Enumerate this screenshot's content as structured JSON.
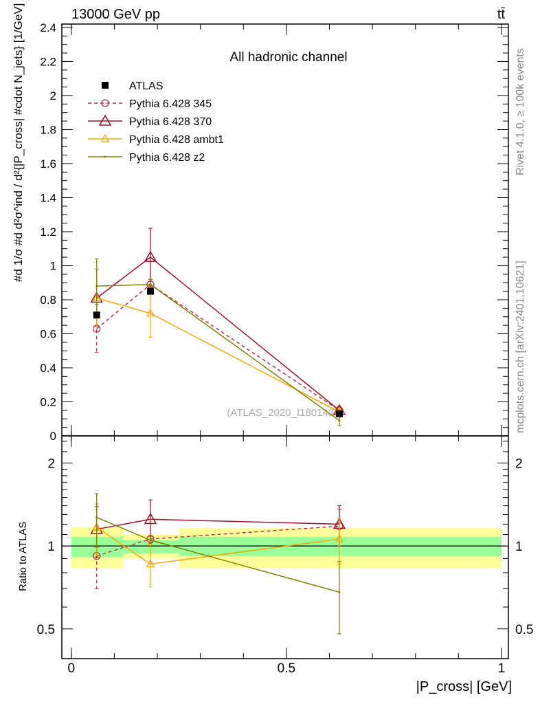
{
  "header": {
    "left": "13000 GeV pp",
    "right": "tt̄"
  },
  "side": {
    "rivet": "Rivet 4.1.0, ≥ 100k events",
    "mcplots": "mcplots.cern.ch [arXiv:2401.10621]"
  },
  "chart_data": [
    {
      "type": "line",
      "title": "All hadronic channel",
      "watermark": "(ATLAS_2020_I1801434)",
      "ylabel": "#d 1/σ #d d²σ^ind / d²{|P_cross| #cdot N_jets} [1/GeV]",
      "xlabel": "|P_cross| [GeV]",
      "xlim": [
        -0.022,
        1.016
      ],
      "ylim": [
        0,
        2.42
      ],
      "yticks": [
        "0",
        "0.2",
        "0.4",
        "0.6",
        "0.8",
        "1",
        "1.2",
        "1.4",
        "1.6",
        "1.8",
        "2",
        "2.2",
        "2.4"
      ],
      "x": [
        0.059,
        0.184,
        0.623
      ],
      "legend_position": "top-left",
      "series": [
        {
          "name": "ATLAS",
          "color": "#000000",
          "marker": "square",
          "values": [
            0.71,
            0.85,
            0.13
          ],
          "err": [
            0,
            0,
            0
          ]
        },
        {
          "name": "Pythia 6.428 345",
          "color": "#b03050",
          "marker": "circle",
          "dashed": true,
          "values": [
            0.63,
            0.89,
            0.15
          ],
          "err": [
            0.14,
            0.03,
            0.02
          ]
        },
        {
          "name": "Pythia 6.428 370",
          "color": "#a01028",
          "marker": "triangle",
          "values": [
            0.81,
            1.05,
            0.15
          ],
          "err": [
            0.17,
            0.17,
            0.02
          ]
        },
        {
          "name": "Pythia 6.428 ambt1",
          "color": "#f5a800",
          "marker": "triangle-small",
          "values": [
            0.81,
            0.72,
            0.14
          ],
          "err": [
            0.17,
            0.14,
            0.02
          ]
        },
        {
          "name": "Pythia 6.428 z2",
          "color": "#808000",
          "marker": "dot",
          "values": [
            0.88,
            0.89,
            0.09
          ],
          "err": [
            0.16,
            0.03,
            0.03
          ]
        }
      ]
    },
    {
      "type": "line",
      "ylabel": "Ratio to ATLAS",
      "scale": "log",
      "ylim": [
        0.39,
        2.51
      ],
      "yticks": [
        "0.5",
        "1",
        "2"
      ],
      "xticks": [
        "0",
        "0.5",
        "1"
      ],
      "x": [
        0.059,
        0.184,
        0.623
      ],
      "bands": {
        "bins": [
          [
            0,
            0.12
          ],
          [
            0.12,
            0.25
          ],
          [
            0.25,
            1.0
          ]
        ],
        "yellow": [
          [
            0.83,
            1.17
          ],
          [
            0.9,
            1.1
          ],
          [
            0.83,
            1.16
          ]
        ],
        "green": [
          [
            0.91,
            1.08
          ],
          [
            0.94,
            1.05
          ],
          [
            0.92,
            1.08
          ]
        ],
        "yellow_color": "#ffff99",
        "green_color": "#99ff99"
      },
      "series": [
        {
          "name": "Pythia 6.428 345",
          "values": [
            0.92,
            1.06,
            1.18
          ],
          "err": [
            0.22,
            0.03,
            0.18
          ]
        },
        {
          "name": "Pythia 6.428 370",
          "values": [
            1.15,
            1.25,
            1.2
          ],
          "err": [
            0.24,
            0.22,
            0.2
          ]
        },
        {
          "name": "Pythia 6.428 ambt1",
          "values": [
            1.17,
            0.86,
            1.06
          ],
          "err": [
            0.25,
            0.15,
            0.2
          ]
        },
        {
          "name": "Pythia 6.428 z2",
          "values": [
            1.27,
            1.05,
            0.68
          ],
          "err": [
            0.28,
            0.03,
            0.2
          ]
        }
      ]
    }
  ]
}
